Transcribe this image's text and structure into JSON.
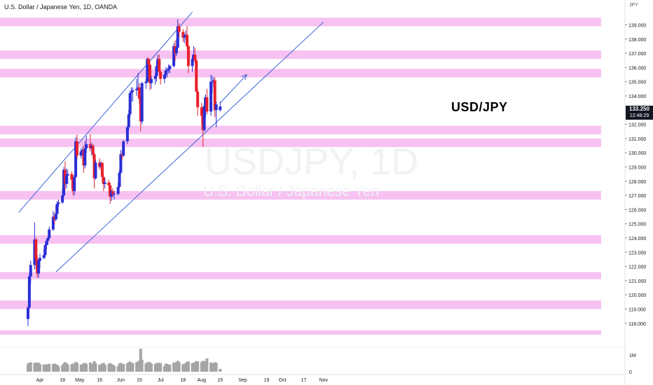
{
  "header": {
    "title": "U.S. Dollar / Japanese Yen, 1D, OANDA"
  },
  "annotation": {
    "pair_label": "USD/JPY"
  },
  "watermark": {
    "symbol": "USDJPY, 1D",
    "name": "U.S. Dollar / Japanese Yen"
  },
  "price_axis": {
    "currency": "JPY",
    "last_price": "133.250",
    "countdown": "12:48:29"
  },
  "volume_axis": {
    "labels": [
      "1M",
      "0"
    ]
  },
  "colors": {
    "up": "#2a2ed6",
    "down": "#e8202b",
    "zone": "#f7c2f2",
    "trendline": "#3a62d6",
    "price_tag": "#131722"
  },
  "chart_data": {
    "type": "candlestick",
    "title": "U.S. Dollar / Japanese Yen, 1D, OANDA",
    "ylabel": "JPY",
    "ylim": [
      117.0,
      140.0
    ],
    "y_ticks": [
      118,
      119,
      120,
      121,
      122,
      123,
      124,
      125,
      126,
      127,
      128,
      129,
      130,
      131,
      132,
      133,
      134,
      135,
      136,
      137,
      138,
      139
    ],
    "x_tick_labels": [
      "Apr",
      "18",
      "May",
      "16",
      "Jun",
      "15",
      "Jul",
      "18",
      "Aug",
      "15",
      "Sep",
      "19",
      "Oct",
      "17",
      "Nov"
    ],
    "last_price": 133.25,
    "grid": false,
    "zones": [
      {
        "low": 138.9,
        "high": 139.5
      },
      {
        "low": 136.6,
        "high": 137.2
      },
      {
        "low": 135.3,
        "high": 135.9
      },
      {
        "low": 131.3,
        "high": 131.9
      },
      {
        "low": 130.4,
        "high": 131.0
      },
      {
        "low": 126.7,
        "high": 127.3
      },
      {
        "low": 123.6,
        "high": 124.2
      },
      {
        "low": 121.1,
        "high": 121.6
      },
      {
        "low": 119.0,
        "high": 119.6
      },
      {
        "low": 117.2,
        "high": 117.5
      }
    ],
    "trendlines": [
      {
        "x": [
          "2022-03-16",
          "2022-07-25"
        ],
        "y": [
          125.8,
          139.9
        ]
      },
      {
        "x": [
          "2022-04-13",
          "2022-11-01"
        ],
        "y": [
          121.6,
          139.2
        ]
      }
    ],
    "projection_arrow": {
      "x": [
        "2022-08-15",
        "2022-09-04"
      ],
      "y": [
        133.5,
        135.5
      ]
    },
    "candles": [
      {
        "date": "2022-03-23",
        "o": 118.3,
        "h": 119.2,
        "l": 117.8,
        "c": 119.1,
        "v": 0.35
      },
      {
        "date": "2022-03-24",
        "o": 119.1,
        "h": 121.5,
        "l": 119.0,
        "c": 121.3,
        "v": 0.38
      },
      {
        "date": "2022-03-25",
        "o": 121.3,
        "h": 122.4,
        "l": 120.8,
        "c": 122.1,
        "v": 0.41
      },
      {
        "date": "2022-03-28",
        "o": 122.1,
        "h": 125.1,
        "l": 121.8,
        "c": 123.9,
        "v": 0.37
      },
      {
        "date": "2022-03-29",
        "o": 123.9,
        "h": 124.0,
        "l": 121.8,
        "c": 122.5,
        "v": 0.4
      },
      {
        "date": "2022-03-30",
        "o": 122.5,
        "h": 122.8,
        "l": 121.2,
        "c": 121.5,
        "v": 0.36
      },
      {
        "date": "2022-03-31",
        "o": 121.5,
        "h": 122.6,
        "l": 121.2,
        "c": 122.4,
        "v": 0.39
      },
      {
        "date": "2022-04-01",
        "o": 122.4,
        "h": 122.9,
        "l": 121.9,
        "c": 122.6,
        "v": 0.33
      },
      {
        "date": "2022-04-04",
        "o": 122.6,
        "h": 123.2,
        "l": 122.5,
        "c": 122.8,
        "v": 0.31
      },
      {
        "date": "2022-04-05",
        "o": 122.8,
        "h": 123.6,
        "l": 122.6,
        "c": 123.5,
        "v": 0.3
      },
      {
        "date": "2022-04-06",
        "o": 123.5,
        "h": 123.9,
        "l": 123.2,
        "c": 123.8,
        "v": 0.32
      },
      {
        "date": "2022-04-07",
        "o": 123.8,
        "h": 124.1,
        "l": 123.5,
        "c": 124.0,
        "v": 0.29
      },
      {
        "date": "2022-04-08",
        "o": 124.0,
        "h": 124.8,
        "l": 123.9,
        "c": 124.6,
        "v": 0.34
      },
      {
        "date": "2022-04-11",
        "o": 124.6,
        "h": 125.9,
        "l": 124.5,
        "c": 125.5,
        "v": 0.33
      },
      {
        "date": "2022-04-12",
        "o": 125.5,
        "h": 125.8,
        "l": 125.0,
        "c": 125.3,
        "v": 0.35
      },
      {
        "date": "2022-04-13",
        "o": 125.3,
        "h": 126.3,
        "l": 125.2,
        "c": 125.7,
        "v": 0.31
      },
      {
        "date": "2022-04-14",
        "o": 125.7,
        "h": 126.6,
        "l": 125.4,
        "c": 126.4,
        "v": 0.3
      },
      {
        "date": "2022-04-15",
        "o": 126.4,
        "h": 126.7,
        "l": 126.2,
        "c": 126.5,
        "v": 0.22
      },
      {
        "date": "2022-04-18",
        "o": 126.5,
        "h": 127.5,
        "l": 126.4,
        "c": 127.0,
        "v": 0.28
      },
      {
        "date": "2022-04-19",
        "o": 127.0,
        "h": 129.0,
        "l": 126.9,
        "c": 128.8,
        "v": 0.36
      },
      {
        "date": "2022-04-20",
        "o": 128.8,
        "h": 129.4,
        "l": 127.4,
        "c": 127.8,
        "v": 0.41
      },
      {
        "date": "2022-04-21",
        "o": 127.8,
        "h": 128.9,
        "l": 127.5,
        "c": 128.4,
        "v": 0.37
      },
      {
        "date": "2022-04-22",
        "o": 128.4,
        "h": 128.8,
        "l": 127.8,
        "c": 128.5,
        "v": 0.3
      },
      {
        "date": "2022-04-25",
        "o": 128.5,
        "h": 128.7,
        "l": 127.5,
        "c": 128.1,
        "v": 0.32
      },
      {
        "date": "2022-04-26",
        "o": 128.1,
        "h": 128.4,
        "l": 127.0,
        "c": 127.3,
        "v": 0.35
      },
      {
        "date": "2022-04-27",
        "o": 127.3,
        "h": 128.5,
        "l": 127.0,
        "c": 128.3,
        "v": 0.33
      },
      {
        "date": "2022-04-28",
        "o": 128.3,
        "h": 131.1,
        "l": 128.2,
        "c": 130.8,
        "v": 0.42
      },
      {
        "date": "2022-04-29",
        "o": 130.8,
        "h": 131.3,
        "l": 129.6,
        "c": 129.8,
        "v": 0.39
      },
      {
        "date": "2022-05-02",
        "o": 129.8,
        "h": 130.3,
        "l": 129.6,
        "c": 130.1,
        "v": 0.31
      },
      {
        "date": "2022-05-03",
        "o": 130.1,
        "h": 130.4,
        "l": 129.9,
        "c": 130.2,
        "v": 0.29
      },
      {
        "date": "2022-05-04",
        "o": 130.2,
        "h": 130.5,
        "l": 128.6,
        "c": 129.1,
        "v": 0.36
      },
      {
        "date": "2022-05-05",
        "o": 129.1,
        "h": 130.8,
        "l": 128.9,
        "c": 130.3,
        "v": 0.38
      },
      {
        "date": "2022-05-06",
        "o": 130.3,
        "h": 131.2,
        "l": 130.0,
        "c": 130.6,
        "v": 0.34
      },
      {
        "date": "2022-05-09",
        "o": 130.6,
        "h": 131.3,
        "l": 130.1,
        "c": 130.3,
        "v": 0.4
      },
      {
        "date": "2022-05-10",
        "o": 130.3,
        "h": 130.7,
        "l": 129.8,
        "c": 130.5,
        "v": 0.33
      },
      {
        "date": "2022-05-11",
        "o": 130.5,
        "h": 130.6,
        "l": 129.6,
        "c": 129.9,
        "v": 0.35
      },
      {
        "date": "2022-05-12",
        "o": 129.9,
        "h": 130.0,
        "l": 127.5,
        "c": 128.2,
        "v": 0.46
      },
      {
        "date": "2022-05-13",
        "o": 128.2,
        "h": 129.5,
        "l": 128.1,
        "c": 129.3,
        "v": 0.37
      },
      {
        "date": "2022-05-16",
        "o": 129.3,
        "h": 129.6,
        "l": 128.8,
        "c": 129.0,
        "v": 0.3
      },
      {
        "date": "2022-05-17",
        "o": 129.0,
        "h": 129.4,
        "l": 128.9,
        "c": 129.3,
        "v": 0.31
      },
      {
        "date": "2022-05-18",
        "o": 129.3,
        "h": 129.2,
        "l": 127.9,
        "c": 128.3,
        "v": 0.36
      },
      {
        "date": "2022-05-19",
        "o": 128.3,
        "h": 128.5,
        "l": 127.3,
        "c": 127.8,
        "v": 0.38
      },
      {
        "date": "2022-05-20",
        "o": 127.8,
        "h": 128.2,
        "l": 127.5,
        "c": 127.9,
        "v": 0.3
      },
      {
        "date": "2022-05-23",
        "o": 127.9,
        "h": 128.1,
        "l": 127.0,
        "c": 127.7,
        "v": 0.34
      },
      {
        "date": "2022-05-24",
        "o": 127.7,
        "h": 127.9,
        "l": 126.4,
        "c": 126.9,
        "v": 0.37
      },
      {
        "date": "2022-05-25",
        "o": 126.9,
        "h": 127.4,
        "l": 126.6,
        "c": 127.3,
        "v": 0.33
      },
      {
        "date": "2022-05-26",
        "o": 127.3,
        "h": 127.5,
        "l": 126.9,
        "c": 127.1,
        "v": 0.29
      },
      {
        "date": "2022-05-27",
        "o": 127.1,
        "h": 127.3,
        "l": 126.7,
        "c": 127.1,
        "v": 0.26
      },
      {
        "date": "2022-05-30",
        "o": 127.1,
        "h": 127.9,
        "l": 127.0,
        "c": 127.6,
        "v": 0.24
      },
      {
        "date": "2022-05-31",
        "o": 127.6,
        "h": 128.8,
        "l": 127.5,
        "c": 128.6,
        "v": 0.35
      },
      {
        "date": "2022-06-01",
        "o": 128.6,
        "h": 130.2,
        "l": 128.5,
        "c": 129.9,
        "v": 0.38
      },
      {
        "date": "2022-06-02",
        "o": 129.9,
        "h": 130.1,
        "l": 129.5,
        "c": 129.8,
        "v": 0.33
      },
      {
        "date": "2022-06-03",
        "o": 129.8,
        "h": 130.9,
        "l": 129.7,
        "c": 130.8,
        "v": 0.34
      },
      {
        "date": "2022-06-06",
        "o": 130.8,
        "h": 131.9,
        "l": 130.6,
        "c": 131.8,
        "v": 0.36
      },
      {
        "date": "2022-06-07",
        "o": 131.8,
        "h": 133.0,
        "l": 131.6,
        "c": 132.7,
        "v": 0.4
      },
      {
        "date": "2022-06-08",
        "o": 132.7,
        "h": 134.4,
        "l": 132.5,
        "c": 134.2,
        "v": 0.44
      },
      {
        "date": "2022-06-09",
        "o": 134.2,
        "h": 134.6,
        "l": 133.6,
        "c": 134.3,
        "v": 0.39
      },
      {
        "date": "2022-06-10",
        "o": 134.3,
        "h": 134.6,
        "l": 133.6,
        "c": 134.4,
        "v": 0.37
      },
      {
        "date": "2022-06-13",
        "o": 134.4,
        "h": 135.2,
        "l": 134.0,
        "c": 134.5,
        "v": 0.41
      },
      {
        "date": "2022-06-14",
        "o": 134.5,
        "h": 135.6,
        "l": 134.4,
        "c": 134.6,
        "v": 0.43
      },
      {
        "date": "2022-06-15",
        "o": 134.6,
        "h": 134.9,
        "l": 133.4,
        "c": 133.8,
        "v": 0.48
      },
      {
        "date": "2022-06-16",
        "o": 133.8,
        "h": 134.0,
        "l": 131.5,
        "c": 132.2,
        "v": 1.0
      },
      {
        "date": "2022-06-17",
        "o": 132.2,
        "h": 135.0,
        "l": 132.0,
        "c": 134.9,
        "v": 0.52
      },
      {
        "date": "2022-06-20",
        "o": 134.9,
        "h": 135.2,
        "l": 134.5,
        "c": 135.0,
        "v": 0.36
      },
      {
        "date": "2022-06-21",
        "o": 135.0,
        "h": 136.7,
        "l": 134.9,
        "c": 136.6,
        "v": 0.4
      },
      {
        "date": "2022-06-22",
        "o": 136.6,
        "h": 136.7,
        "l": 135.4,
        "c": 136.2,
        "v": 0.42
      },
      {
        "date": "2022-06-23",
        "o": 136.2,
        "h": 136.4,
        "l": 134.4,
        "c": 134.9,
        "v": 0.41
      },
      {
        "date": "2022-06-24",
        "o": 134.9,
        "h": 135.4,
        "l": 134.5,
        "c": 135.2,
        "v": 0.35
      },
      {
        "date": "2022-06-27",
        "o": 135.2,
        "h": 135.6,
        "l": 134.8,
        "c": 135.4,
        "v": 0.33
      },
      {
        "date": "2022-06-28",
        "o": 135.4,
        "h": 136.5,
        "l": 135.0,
        "c": 136.1,
        "v": 0.38
      },
      {
        "date": "2022-06-29",
        "o": 136.1,
        "h": 136.9,
        "l": 135.8,
        "c": 136.6,
        "v": 0.37
      },
      {
        "date": "2022-06-30",
        "o": 136.6,
        "h": 136.9,
        "l": 135.5,
        "c": 135.7,
        "v": 0.39
      },
      {
        "date": "2022-07-01",
        "o": 135.7,
        "h": 135.8,
        "l": 134.8,
        "c": 135.2,
        "v": 0.36
      },
      {
        "date": "2022-07-04",
        "o": 135.2,
        "h": 135.6,
        "l": 134.9,
        "c": 135.5,
        "v": 0.24
      },
      {
        "date": "2022-07-05",
        "o": 135.5,
        "h": 136.0,
        "l": 135.3,
        "c": 135.8,
        "v": 0.35
      },
      {
        "date": "2022-07-06",
        "o": 135.8,
        "h": 136.0,
        "l": 135.3,
        "c": 135.8,
        "v": 0.33
      },
      {
        "date": "2022-07-07",
        "o": 135.8,
        "h": 136.2,
        "l": 135.6,
        "c": 135.9,
        "v": 0.3
      },
      {
        "date": "2022-07-08",
        "o": 135.9,
        "h": 136.2,
        "l": 135.6,
        "c": 136.1,
        "v": 0.31
      },
      {
        "date": "2022-07-11",
        "o": 136.1,
        "h": 137.7,
        "l": 136.0,
        "c": 137.5,
        "v": 0.4
      },
      {
        "date": "2022-07-12",
        "o": 137.5,
        "h": 137.9,
        "l": 136.5,
        "c": 137.0,
        "v": 0.38
      },
      {
        "date": "2022-07-13",
        "o": 137.0,
        "h": 138.0,
        "l": 136.8,
        "c": 137.4,
        "v": 0.41
      },
      {
        "date": "2022-07-14",
        "o": 137.4,
        "h": 139.4,
        "l": 137.3,
        "c": 138.9,
        "v": 0.47
      },
      {
        "date": "2022-07-15",
        "o": 138.9,
        "h": 139.1,
        "l": 138.1,
        "c": 138.5,
        "v": 0.42
      },
      {
        "date": "2022-07-18",
        "o": 138.5,
        "h": 138.7,
        "l": 137.8,
        "c": 138.1,
        "v": 0.33
      },
      {
        "date": "2022-07-19",
        "o": 138.1,
        "h": 138.4,
        "l": 137.7,
        "c": 138.2,
        "v": 0.34
      },
      {
        "date": "2022-07-20",
        "o": 138.2,
        "h": 138.6,
        "l": 137.9,
        "c": 138.3,
        "v": 0.36
      },
      {
        "date": "2022-07-21",
        "o": 138.3,
        "h": 138.9,
        "l": 137.3,
        "c": 137.5,
        "v": 0.43
      },
      {
        "date": "2022-07-22",
        "o": 137.5,
        "h": 137.6,
        "l": 135.6,
        "c": 136.1,
        "v": 0.45
      },
      {
        "date": "2022-07-25",
        "o": 136.1,
        "h": 136.9,
        "l": 135.7,
        "c": 136.6,
        "v": 0.37
      },
      {
        "date": "2022-07-26",
        "o": 136.6,
        "h": 137.5,
        "l": 136.4,
        "c": 136.9,
        "v": 0.39
      },
      {
        "date": "2022-07-27",
        "o": 136.9,
        "h": 137.4,
        "l": 136.3,
        "c": 136.5,
        "v": 0.4
      },
      {
        "date": "2022-07-28",
        "o": 136.5,
        "h": 136.6,
        "l": 134.3,
        "c": 134.3,
        "v": 0.46
      },
      {
        "date": "2022-07-29",
        "o": 134.3,
        "h": 134.5,
        "l": 132.6,
        "c": 133.2,
        "v": 0.44
      },
      {
        "date": "2022-08-01",
        "o": 133.2,
        "h": 133.5,
        "l": 131.9,
        "c": 132.6,
        "v": 0.42
      },
      {
        "date": "2022-08-02",
        "o": 132.6,
        "h": 133.2,
        "l": 130.4,
        "c": 131.6,
        "v": 0.47
      },
      {
        "date": "2022-08-03",
        "o": 131.6,
        "h": 133.9,
        "l": 131.5,
        "c": 133.3,
        "v": 0.44
      },
      {
        "date": "2022-08-04",
        "o": 133.3,
        "h": 134.1,
        "l": 132.5,
        "c": 133.9,
        "v": 0.45
      },
      {
        "date": "2022-08-05",
        "o": 133.9,
        "h": 134.5,
        "l": 132.7,
        "c": 132.9,
        "v": 0.58
      },
      {
        "date": "2022-08-08",
        "o": 132.9,
        "h": 135.5,
        "l": 132.6,
        "c": 135.0,
        "v": 0.4
      },
      {
        "date": "2022-08-09",
        "o": 135.0,
        "h": 135.4,
        "l": 134.2,
        "c": 135.0,
        "v": 0.34
      },
      {
        "date": "2022-08-10",
        "o": 135.0,
        "h": 135.3,
        "l": 134.6,
        "c": 135.1,
        "v": 0.36
      },
      {
        "date": "2022-08-11",
        "o": 135.1,
        "h": 135.3,
        "l": 132.5,
        "c": 133.0,
        "v": 0.41
      },
      {
        "date": "2022-08-12",
        "o": 133.0,
        "h": 133.6,
        "l": 131.8,
        "c": 133.4,
        "v": 0.38
      },
      {
        "date": "2022-08-15",
        "o": 133.0,
        "h": 133.6,
        "l": 132.9,
        "c": 133.25,
        "v": 0.12
      }
    ]
  }
}
